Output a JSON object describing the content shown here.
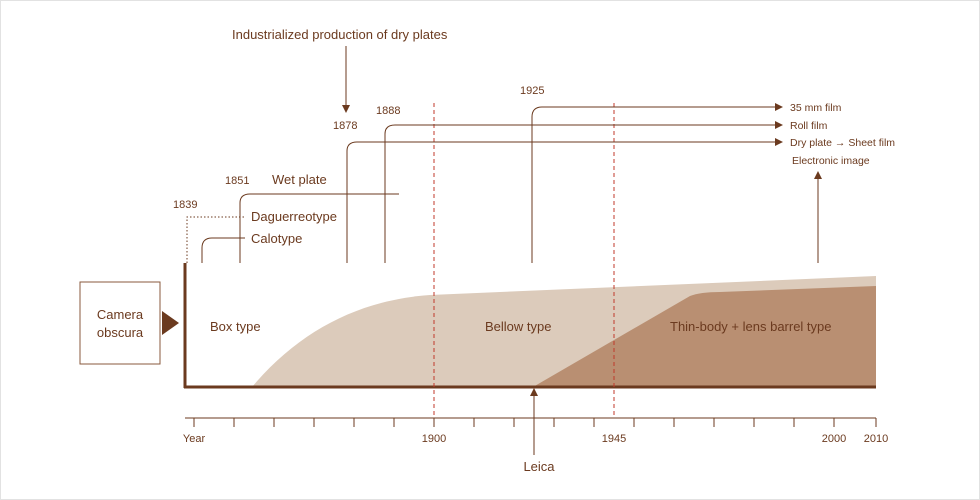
{
  "top_annotation": "Industrialized production of dry plates",
  "years": {
    "y1839": "1839",
    "y1851": "1851",
    "y1878": "1878",
    "y1888": "1888",
    "y1925": "1925"
  },
  "techniques": {
    "wet_plate": "Wet plate",
    "daguerreotype": "Daguerreotype",
    "calotype": "Calotype",
    "film_35mm": "35 mm film",
    "roll_film": "Roll film",
    "dry_plate_sheet": "Dry plate → Sheet film",
    "electronic": "Electronic image"
  },
  "box": {
    "line1": "Camera",
    "line2": "obscura"
  },
  "eras": {
    "box_type": "Box type",
    "bellow_type": "Bellow type",
    "thin_body": "Thin-body + lens barrel type"
  },
  "axis": {
    "year_label": "Year",
    "t1900": "1900",
    "t1945": "1945",
    "t2000": "2000",
    "t2010": "2010"
  },
  "leica": "Leica",
  "colors": {
    "brown_dark": "#6b3a1f",
    "bellow_fill": "#dccbbb",
    "thin_fill": "#b98f72",
    "dashed_red": "#c0392b"
  }
}
